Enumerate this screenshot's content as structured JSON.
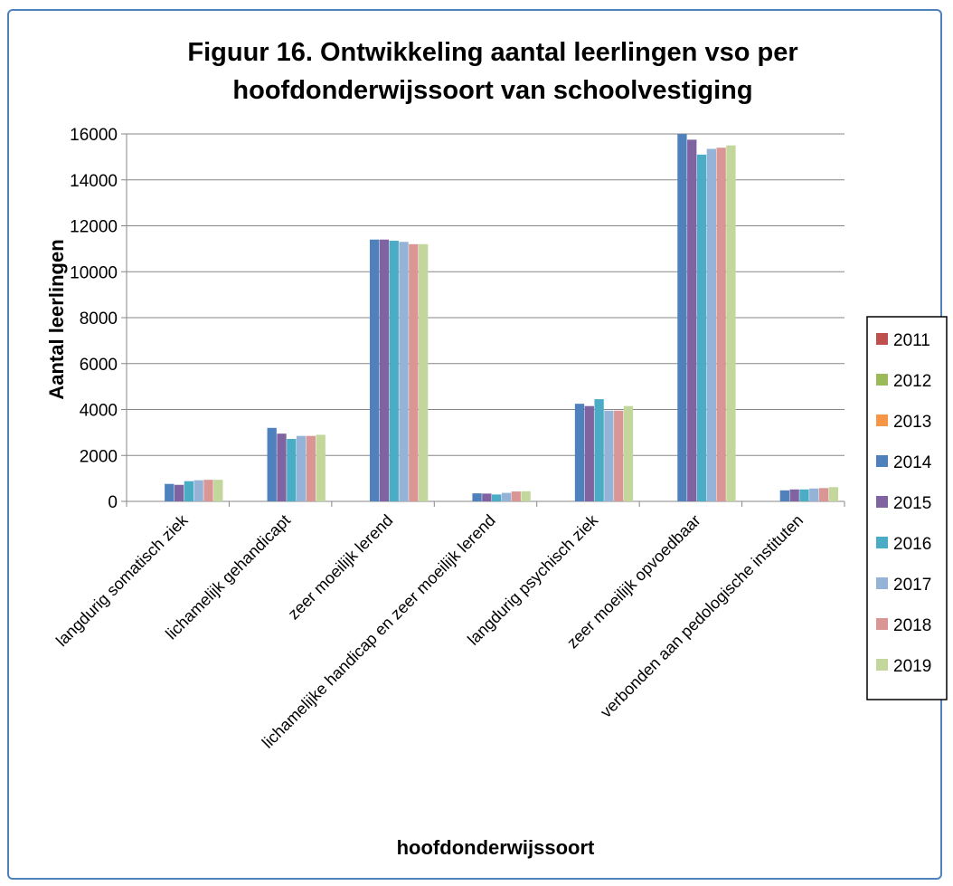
{
  "chart_data": {
    "type": "bar",
    "title_lines": [
      "Figuur 16. Ontwikkeling aantal leerlingen vso per",
      "hoofdonderwijssoort van schoolvestiging"
    ],
    "xlabel": "hoofdonderwijssoort",
    "ylabel": "Aantal leerlingen",
    "ylim": [
      0,
      16000
    ],
    "yticks": [
      0,
      2000,
      4000,
      6000,
      8000,
      10000,
      12000,
      14000,
      16000
    ],
    "grid": true,
    "legend_position": "right",
    "categories": [
      "langdurig somatisch ziek",
      "lichamelijk gehandicapt",
      "zeer moeilijk lerend",
      "lichamelijke handicap en zeer moeilijk lerend",
      "langdurig psychisch ziek",
      "zeer moeilijk opvoedbaar",
      "verbonden aan pedologische instituten"
    ],
    "series": [
      {
        "name": "2011",
        "color": "#c0504d",
        "values": [
          null,
          null,
          null,
          null,
          null,
          null,
          null
        ]
      },
      {
        "name": "2012",
        "color": "#9bbb59",
        "values": [
          null,
          null,
          null,
          null,
          null,
          null,
          null
        ]
      },
      {
        "name": "2013",
        "color": "#f79646",
        "values": [
          null,
          null,
          null,
          null,
          null,
          null,
          null
        ]
      },
      {
        "name": "2014",
        "color": "#4f81bd",
        "values": [
          760,
          3200,
          11400,
          350,
          4250,
          16000,
          480
        ]
      },
      {
        "name": "2015",
        "color": "#8064a2",
        "values": [
          720,
          2950,
          11400,
          340,
          4150,
          15750,
          520
        ]
      },
      {
        "name": "2016",
        "color": "#4bacc6",
        "values": [
          880,
          2720,
          11350,
          300,
          4450,
          15100,
          520
        ]
      },
      {
        "name": "2017",
        "color": "#95b3d7",
        "values": [
          920,
          2850,
          11300,
          370,
          3950,
          15350,
          560
        ]
      },
      {
        "name": "2018",
        "color": "#d99694",
        "values": [
          940,
          2850,
          11200,
          430,
          3950,
          15400,
          580
        ]
      },
      {
        "name": "2019",
        "color": "#c3d69b",
        "values": [
          940,
          2900,
          11200,
          440,
          4150,
          15500,
          620
        ]
      }
    ]
  }
}
